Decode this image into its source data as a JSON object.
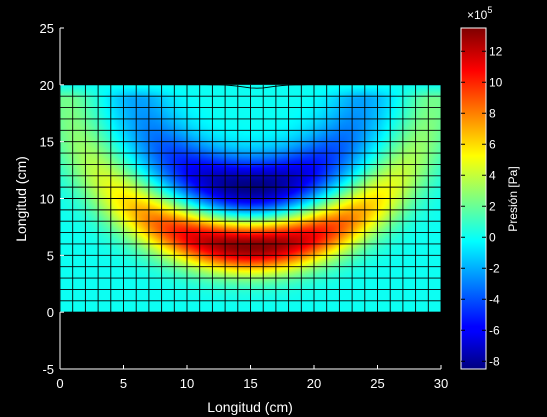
{
  "chart_data": {
    "type": "heatmap",
    "title": "",
    "xlabel": "Longitud (cm)",
    "ylabel": "Longitud (cm)",
    "xlim": [
      0,
      30
    ],
    "ylim": [
      -5,
      25
    ],
    "xticks": [
      "0",
      "5",
      "10",
      "15",
      "20",
      "25",
      "30"
    ],
    "yticks": [
      "-5",
      "0",
      "5",
      "10",
      "15",
      "20",
      "25"
    ],
    "mesh": {
      "x_range": [
        0,
        30
      ],
      "y_range": [
        0,
        20
      ],
      "columns": 30,
      "rows": 20,
      "grid": true,
      "surface_dip": 0.3
    },
    "field": {
      "description_values": "pressure over domain",
      "max_pressure": 13.5,
      "min_pressure": -8.5,
      "max_band_center": [
        15,
        5
      ],
      "min_band_center": [
        15,
        11
      ]
    },
    "colorbar": {
      "label": "Presión [Pa]",
      "exponent": "×10^5",
      "exponent_base": "×10",
      "exponent_power": "5",
      "range": [
        -8.5,
        13.5
      ],
      "ticks": [
        "-8",
        "-6",
        "-4",
        "-2",
        "0",
        "2",
        "4",
        "6",
        "8",
        "10",
        "12"
      ],
      "colormap": "jet"
    }
  }
}
